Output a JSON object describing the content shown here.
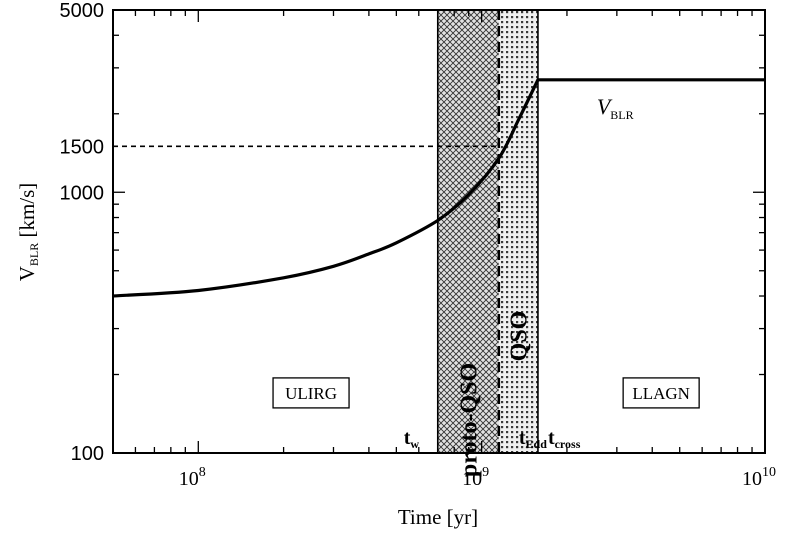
{
  "chart_data": {
    "type": "line",
    "xscale": "log",
    "yscale": "log",
    "xlim": [
      50000000,
      10000000000
    ],
    "ylim": [
      100,
      5000
    ],
    "xlabel": "Time [yr]",
    "ylabel": {
      "main": "V",
      "sub": "BLR",
      "unit": " [km/s]"
    },
    "x_ticks": [
      {
        "value": 100000000,
        "base": "10",
        "exp": "8"
      },
      {
        "value": 1000000000,
        "base": "10",
        "exp": "9"
      },
      {
        "value": 10000000000,
        "base": "10",
        "exp": "10"
      }
    ],
    "y_ticks": [
      {
        "value": 100,
        "label": "100"
      },
      {
        "value": 1000,
        "label": "1000"
      },
      {
        "value": 1500,
        "label": "1500"
      },
      {
        "value": 5000,
        "label": "5000"
      }
    ],
    "series": [
      {
        "name": "V_BLR",
        "x": [
          50000000,
          100000000,
          200000000,
          300000000,
          400000000,
          500000000,
          700000000,
          900000000,
          1150000000,
          1350000000,
          1580000000,
          10000000000
        ],
        "y": [
          400,
          420,
          470,
          520,
          580,
          640,
          780,
          980,
          1350,
          1900,
          2700,
          2700
        ]
      }
    ],
    "reference_line": {
      "y": 1500,
      "x_end": 1150000000,
      "style": "dashed"
    },
    "phase_lines": [
      {
        "x": 700000000,
        "label": "t",
        "sub": "w",
        "style": "solid"
      },
      {
        "x": 1150000000,
        "label": "t",
        "sub": "Edd",
        "style": "dashed"
      },
      {
        "x": 1580000000,
        "label": "t",
        "sub": "cross",
        "style": "solid"
      }
    ],
    "shaded_regions": [
      {
        "x_start": 700000000,
        "x_end": 1150000000,
        "label": "proto-QSO",
        "pattern": "crosshatch"
      },
      {
        "x_start": 1150000000,
        "x_end": 1580000000,
        "label": "QSO",
        "pattern": "dots"
      }
    ],
    "boxed_labels": [
      {
        "text": "ULIRG",
        "x": 250000000,
        "y": 170
      },
      {
        "text": "LLAGN",
        "x": 4300000000,
        "y": 170
      }
    ],
    "series_label": {
      "main": "V",
      "sub": "BLR",
      "x": 3000000000,
      "y": 2300
    },
    "grid": false,
    "legend": "none"
  }
}
